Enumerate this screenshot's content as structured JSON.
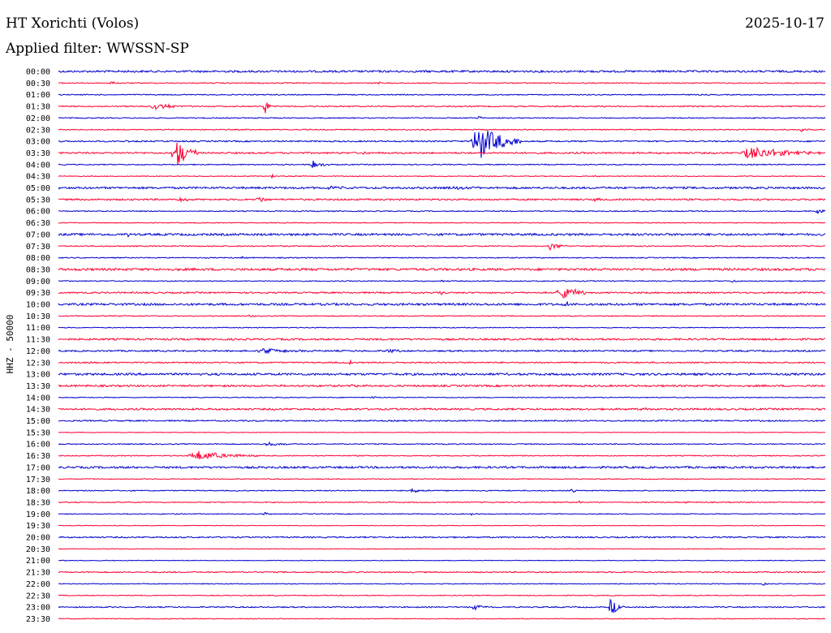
{
  "header": {
    "station": "HT Xorichti (Volos)",
    "date": "2025-10-17",
    "filter": "Applied filter: WWSSN-SP"
  },
  "chart_data": {
    "type": "line",
    "channel_label": "HHZ - 50000",
    "colors": [
      "#0000cc",
      "#ff0033"
    ],
    "rows": [
      {
        "label": "00:00",
        "noise": 1.2,
        "events": []
      },
      {
        "label": "00:30",
        "noise": 0.6,
        "events": [
          {
            "t": 0.07,
            "amp": 3,
            "dur": 0.004
          },
          {
            "t": 0.42,
            "amp": 2,
            "dur": 0.004
          }
        ]
      },
      {
        "label": "01:00",
        "noise": 0.6,
        "events": []
      },
      {
        "label": "01:30",
        "noise": 0.7,
        "events": [
          {
            "t": 0.12,
            "amp": 4,
            "dur": 0.05
          },
          {
            "t": 0.27,
            "amp": 14,
            "dur": 0.004
          }
        ]
      },
      {
        "label": "02:00",
        "noise": 0.6,
        "events": [
          {
            "t": 0.55,
            "amp": 3,
            "dur": 0.005
          }
        ]
      },
      {
        "label": "02:30",
        "noise": 0.6,
        "events": [
          {
            "t": 0.97,
            "amp": 3,
            "dur": 0.006
          }
        ]
      },
      {
        "label": "03:00",
        "noise": 0.8,
        "events": [
          {
            "t": 0.09,
            "amp": 2,
            "dur": 0.01
          },
          {
            "t": 0.54,
            "amp": 24,
            "dur": 0.06
          }
        ]
      },
      {
        "label": "03:30",
        "noise": 1.0,
        "events": [
          {
            "t": 0.15,
            "amp": 20,
            "dur": 0.03
          },
          {
            "t": 0.4,
            "amp": 3,
            "dur": 0.004
          },
          {
            "t": 0.89,
            "amp": 8,
            "dur": 0.1
          }
        ]
      },
      {
        "label": "04:00",
        "noise": 0.6,
        "events": [
          {
            "t": 0.33,
            "amp": 5,
            "dur": 0.02
          }
        ]
      },
      {
        "label": "04:30",
        "noise": 0.5,
        "events": [
          {
            "t": 0.28,
            "amp": 3,
            "dur": 0.004
          },
          {
            "t": 0.7,
            "amp": 2,
            "dur": 0.004
          }
        ]
      },
      {
        "label": "05:00",
        "noise": 1.2,
        "events": [
          {
            "t": 0.35,
            "amp": 2,
            "dur": 0.03
          },
          {
            "t": 0.51,
            "amp": 2,
            "dur": 0.04
          }
        ]
      },
      {
        "label": "05:30",
        "noise": 1.0,
        "events": [
          {
            "t": 0.16,
            "amp": 3,
            "dur": 0.02
          },
          {
            "t": 0.26,
            "amp": 3,
            "dur": 0.02
          },
          {
            "t": 0.7,
            "amp": 2,
            "dur": 0.01
          }
        ]
      },
      {
        "label": "06:00",
        "noise": 0.6,
        "events": [
          {
            "t": 0.99,
            "amp": 5,
            "dur": 0.008
          }
        ]
      },
      {
        "label": "06:30",
        "noise": 0.5,
        "events": []
      },
      {
        "label": "07:00",
        "noise": 1.3,
        "events": [
          {
            "t": 0.09,
            "amp": 2,
            "dur": 0.01
          }
        ]
      },
      {
        "label": "07:30",
        "noise": 0.7,
        "events": [
          {
            "t": 0.64,
            "amp": 6,
            "dur": 0.02
          }
        ]
      },
      {
        "label": "08:00",
        "noise": 0.6,
        "events": [
          {
            "t": 0.24,
            "amp": 2,
            "dur": 0.005
          }
        ]
      },
      {
        "label": "08:30",
        "noise": 1.4,
        "events": []
      },
      {
        "label": "09:00",
        "noise": 0.6,
        "events": [
          {
            "t": 0.5,
            "amp": 2,
            "dur": 0.005
          },
          {
            "t": 0.88,
            "amp": 3,
            "dur": 0.005
          }
        ]
      },
      {
        "label": "09:30",
        "noise": 0.9,
        "events": [
          {
            "t": 0.04,
            "amp": 2,
            "dur": 0.01
          },
          {
            "t": 0.5,
            "amp": 2,
            "dur": 0.005
          },
          {
            "t": 0.65,
            "amp": 8,
            "dur": 0.05
          }
        ]
      },
      {
        "label": "10:00",
        "noise": 1.3,
        "events": [
          {
            "t": 0.66,
            "amp": 2,
            "dur": 0.04
          }
        ]
      },
      {
        "label": "10:30",
        "noise": 0.6,
        "events": [
          {
            "t": 0.25,
            "amp": 2,
            "dur": 0.005
          }
        ]
      },
      {
        "label": "11:00",
        "noise": 0.5,
        "events": []
      },
      {
        "label": "11:30",
        "noise": 1.1,
        "events": []
      },
      {
        "label": "12:00",
        "noise": 0.9,
        "events": [
          {
            "t": 0.26,
            "amp": 3,
            "dur": 0.07
          },
          {
            "t": 0.43,
            "amp": 3,
            "dur": 0.02
          }
        ]
      },
      {
        "label": "12:30",
        "noise": 0.8,
        "events": [
          {
            "t": 0.04,
            "amp": 2,
            "dur": 0.01
          },
          {
            "t": 0.38,
            "amp": 3,
            "dur": 0.005
          }
        ]
      },
      {
        "label": "13:00",
        "noise": 1.3,
        "events": []
      },
      {
        "label": "13:30",
        "noise": 1.1,
        "events": [
          {
            "t": 0.38,
            "amp": 2,
            "dur": 0.02
          }
        ]
      },
      {
        "label": "14:00",
        "noise": 0.5,
        "events": [
          {
            "t": 0.41,
            "amp": 2,
            "dur": 0.005
          }
        ]
      },
      {
        "label": "14:30",
        "noise": 1.1,
        "events": [
          {
            "t": 0.76,
            "amp": 2,
            "dur": 0.02
          }
        ]
      },
      {
        "label": "15:00",
        "noise": 0.8,
        "events": []
      },
      {
        "label": "15:30",
        "noise": 0.4,
        "events": []
      },
      {
        "label": "16:00",
        "noise": 0.6,
        "events": [
          {
            "t": 0.27,
            "amp": 3,
            "dur": 0.03
          }
        ]
      },
      {
        "label": "16:30",
        "noise": 0.6,
        "events": [
          {
            "t": 0.17,
            "amp": 6,
            "dur": 0.09
          }
        ]
      },
      {
        "label": "17:00",
        "noise": 1.2,
        "events": []
      },
      {
        "label": "17:30",
        "noise": 0.5,
        "events": []
      },
      {
        "label": "18:00",
        "noise": 0.6,
        "events": [
          {
            "t": 0.46,
            "amp": 3,
            "dur": 0.03
          },
          {
            "t": 0.67,
            "amp": 2,
            "dur": 0.01
          }
        ]
      },
      {
        "label": "18:30",
        "noise": 0.6,
        "events": [
          {
            "t": 0.68,
            "amp": 2,
            "dur": 0.005
          },
          {
            "t": 0.82,
            "amp": 2,
            "dur": 0.005
          }
        ]
      },
      {
        "label": "19:00",
        "noise": 0.5,
        "events": [
          {
            "t": 0.27,
            "amp": 3,
            "dur": 0.008
          },
          {
            "t": 0.54,
            "amp": 2,
            "dur": 0.005
          }
        ]
      },
      {
        "label": "19:30",
        "noise": 0.4,
        "events": []
      },
      {
        "label": "20:00",
        "noise": 0.8,
        "events": []
      },
      {
        "label": "20:30",
        "noise": 0.4,
        "events": []
      },
      {
        "label": "21:00",
        "noise": 0.4,
        "events": []
      },
      {
        "label": "21:30",
        "noise": 0.7,
        "events": []
      },
      {
        "label": "22:00",
        "noise": 0.5,
        "events": [
          {
            "t": 0.92,
            "amp": 2,
            "dur": 0.005
          }
        ]
      },
      {
        "label": "22:30",
        "noise": 0.5,
        "events": []
      },
      {
        "label": "23:00",
        "noise": 0.7,
        "events": [
          {
            "t": 0.54,
            "amp": 3,
            "dur": 0.03
          },
          {
            "t": 0.72,
            "amp": 11,
            "dur": 0.015
          }
        ]
      },
      {
        "label": "23:30",
        "noise": 0.5,
        "events": []
      }
    ]
  }
}
